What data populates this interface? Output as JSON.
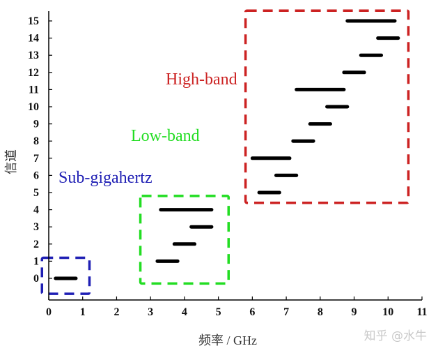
{
  "chart_data": {
    "type": "bar",
    "orientation": "horizontal-range",
    "xlabel": "频率 / GHz",
    "ylabel": "信道",
    "xlim": [
      0,
      11
    ],
    "ylim": [
      0,
      15
    ],
    "x_ticks": [
      "0",
      "1",
      "2",
      "3",
      "4",
      "5",
      "6",
      "7",
      "8",
      "9",
      "10",
      "11"
    ],
    "y_ticks": [
      "0",
      "1",
      "2",
      "3",
      "4",
      "5",
      "6",
      "7",
      "8",
      "9",
      "10",
      "11",
      "12",
      "13",
      "14",
      "15"
    ],
    "grid": false,
    "bar_color": "#000000",
    "channels": [
      {
        "channel": 0,
        "start": 0.2,
        "end": 0.8
      },
      {
        "channel": 1,
        "start": 3.2,
        "end": 3.8
      },
      {
        "channel": 2,
        "start": 3.7,
        "end": 4.3
      },
      {
        "channel": 3,
        "start": 4.2,
        "end": 4.8
      },
      {
        "channel": 4,
        "start": 3.3,
        "end": 4.8
      },
      {
        "channel": 5,
        "start": 6.2,
        "end": 6.8
      },
      {
        "channel": 6,
        "start": 6.7,
        "end": 7.3
      },
      {
        "channel": 7,
        "start": 6.0,
        "end": 7.1
      },
      {
        "channel": 8,
        "start": 7.2,
        "end": 7.8
      },
      {
        "channel": 9,
        "start": 7.7,
        "end": 8.3
      },
      {
        "channel": 10,
        "start": 8.2,
        "end": 8.8
      },
      {
        "channel": 11,
        "start": 7.3,
        "end": 8.7
      },
      {
        "channel": 12,
        "start": 8.7,
        "end": 9.3
      },
      {
        "channel": 13,
        "start": 9.2,
        "end": 9.8
      },
      {
        "channel": 14,
        "start": 9.7,
        "end": 10.3
      },
      {
        "channel": 15,
        "start": 8.8,
        "end": 10.2
      }
    ],
    "annotations": [
      {
        "text": "Sub-gigahertz",
        "color": "#1f1fb4",
        "box": {
          "x": [
            -0.2,
            1.2
          ],
          "y": [
            -0.9,
            1.2
          ]
        }
      },
      {
        "text": "Low-band",
        "color": "#22dd22",
        "box": {
          "x": [
            2.7,
            5.3
          ],
          "y": [
            -0.3,
            4.8
          ]
        }
      },
      {
        "text": "High-band",
        "color": "#cc2222",
        "box": {
          "x": [
            5.8,
            10.6
          ],
          "y": [
            4.4,
            15.6
          ]
        }
      }
    ]
  },
  "watermark": "知乎 @水牛"
}
